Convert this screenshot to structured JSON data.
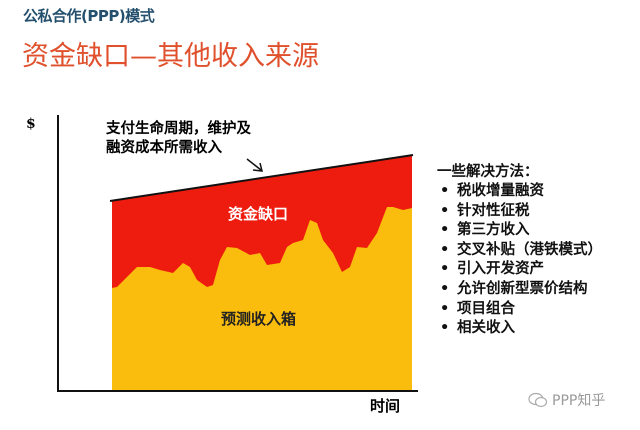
{
  "header": {
    "subtitle": "公私合作(PPP)模式",
    "title": "资金缺口—其他收入来源"
  },
  "diagram": {
    "y_axis_label": "$",
    "x_axis_label": "时间",
    "annotation_line1": "支付生命周期，维护及",
    "annotation_line2": "融资成本所需收入",
    "gap_label": "资金缺口",
    "revenue_label": "预测收入箱",
    "colors": {
      "gap": "#ee1c0e",
      "revenue": "#fbbd0d",
      "title": "#e0502c",
      "subtitle": "#24506e"
    }
  },
  "solutions": {
    "heading": "一些解决方法：",
    "items": [
      "税收增量融资",
      "针对性征税",
      "第三方收入",
      "交叉补贴（港铁模式）",
      "引入开发资产",
      "允许创新型票价结构",
      "项目组合",
      "相关收入"
    ]
  },
  "watermark": {
    "text": "PPP知乎",
    "icon": "wechat-icon"
  }
}
